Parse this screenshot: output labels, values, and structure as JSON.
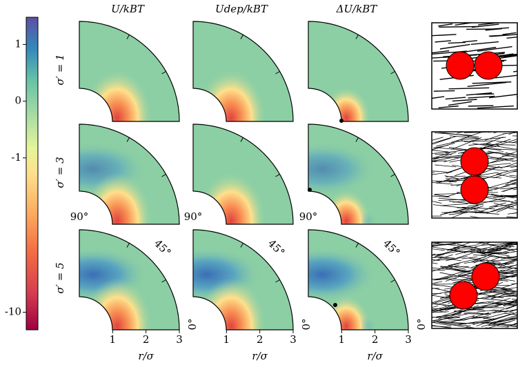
{
  "colorbar": {
    "yticks": [
      1,
      0,
      -1,
      -10
    ],
    "ylim": [
      -13,
      1.5
    ],
    "scale": "symlog"
  },
  "columns": [
    "U/kBT",
    "Udep/kBT",
    "ΔU/kBT"
  ],
  "rows": [
    "σ′ = 1",
    "σ′ = 3",
    "σ′ = 5"
  ],
  "angle_labels": {
    "deg90": "90°",
    "deg45": "45°",
    "deg0": "0°"
  },
  "x_axis": {
    "xlim": [
      0,
      3
    ],
    "xticks": [
      1,
      2,
      3
    ],
    "label": "r/σ"
  }
}
